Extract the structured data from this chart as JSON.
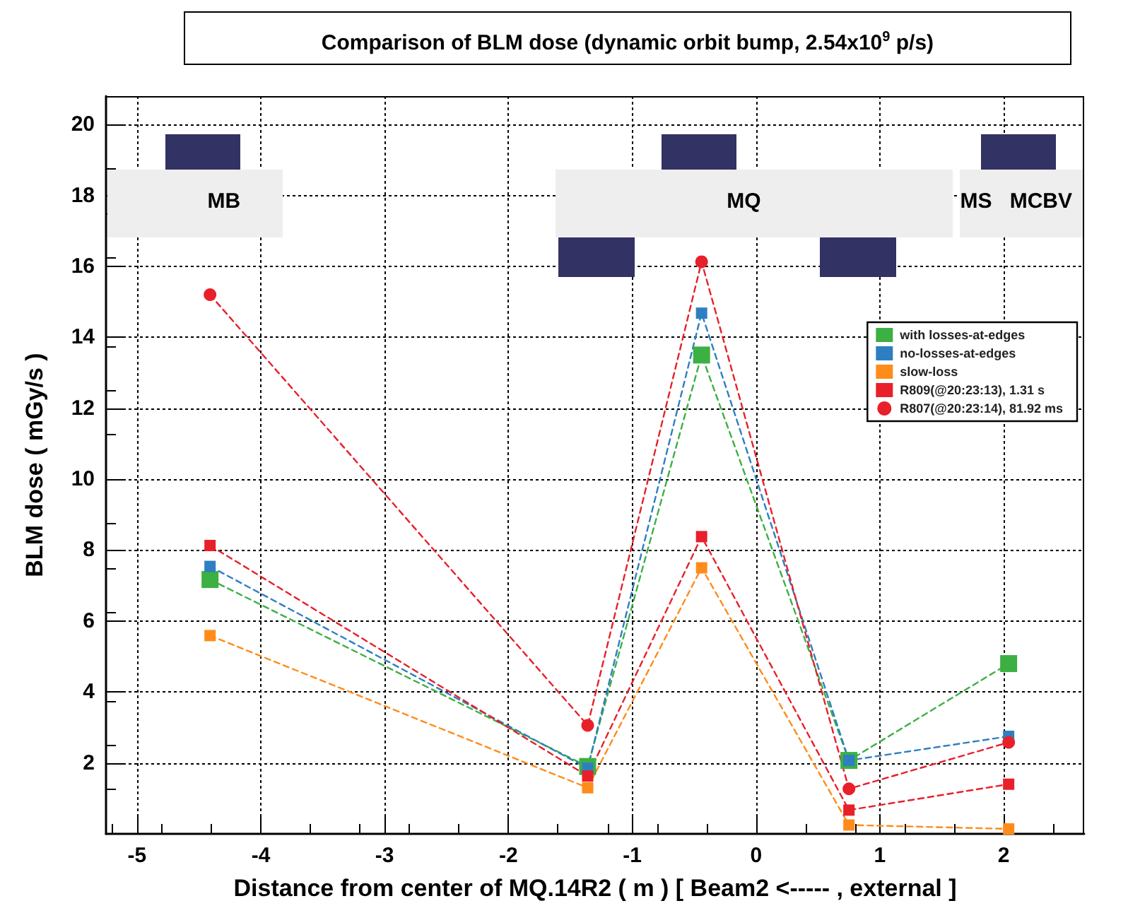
{
  "chart_data": {
    "type": "line",
    "title": "Comparison of BLM dose (dynamic orbit bump, 2.54x10$^{9}$ p/s)",
    "xlabel": "Distance from center of MQ.14R2 ( m ) [ Beam2 <----- , external ]",
    "ylabel": "BLM dose ( mGy/s )",
    "x": [
      -4.41,
      -1.36,
      -0.44,
      0.75,
      2.04
    ],
    "series": [
      {
        "name": "with losses-at-edges",
        "color": "#3cb043",
        "values": [
          7.17,
          1.9,
          13.5,
          2.07,
          4.8
        ]
      },
      {
        "name": "no-losses-at-edges",
        "color": "#2e7fc1",
        "values": [
          7.54,
          1.85,
          14.68,
          2.07,
          2.75
        ]
      },
      {
        "name": "slow-loss",
        "color": "#ff8c1a",
        "values": [
          5.59,
          1.3,
          7.5,
          0.25,
          0.14
        ]
      },
      {
        "name": "R809(@20:23:13), 1.31 s",
        "color": "#e8202a",
        "values": [
          8.13,
          1.63,
          8.38,
          0.67,
          1.4
        ]
      },
      {
        "name": "R807(@20:23:14), 81.92 ms",
        "color": "#e8202a",
        "marker": "circle",
        "values": [
          15.2,
          3.06,
          16.13,
          1.27,
          2.58
        ]
      }
    ],
    "xlim": [
      -5.25,
      2.65
    ],
    "ylim": [
      0,
      20.8
    ],
    "xticks": [
      -5,
      -4,
      -3,
      -2,
      -1,
      0,
      1,
      2
    ],
    "yticks": [
      2,
      4,
      6,
      8,
      10,
      12,
      14,
      16,
      18,
      20
    ],
    "grid": true,
    "legend": "top right",
    "marker": "square",
    "line_style": "dashed",
    "annotations": [
      "MB",
      "MQ",
      "MS",
      "MCBV"
    ]
  }
}
